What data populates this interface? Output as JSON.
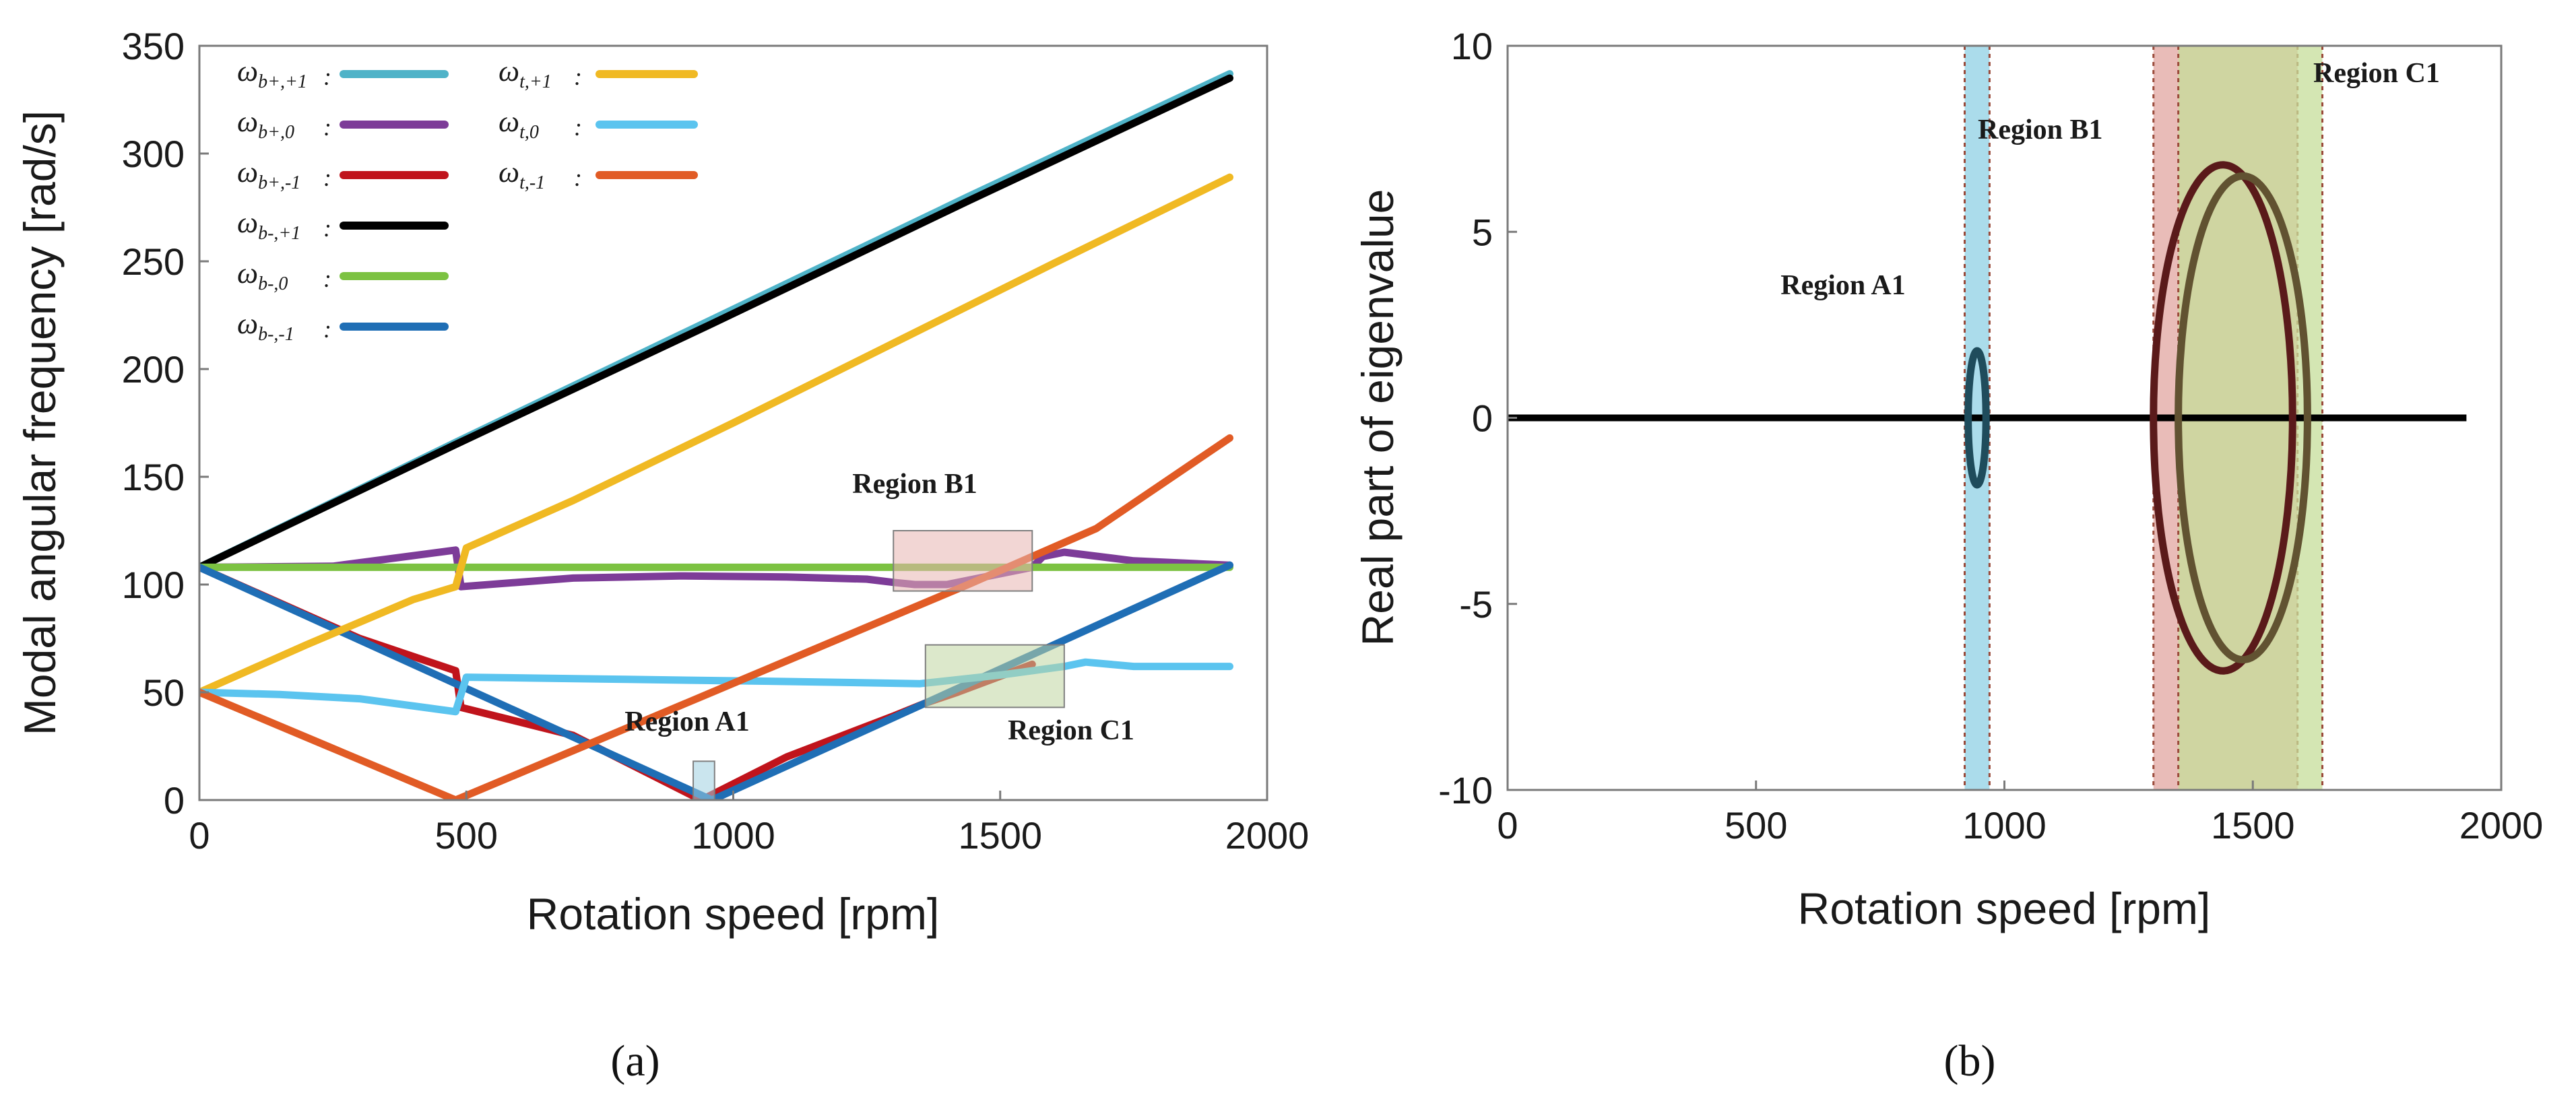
{
  "chart_data": [
    {
      "type": "line",
      "panel_label": "(a)",
      "xlabel": "Rotation speed [rpm]",
      "ylabel": "Modal angular frequency [rad/s]",
      "xlim": [
        0,
        2000
      ],
      "ylim": [
        0,
        350
      ],
      "xticks": [
        0,
        500,
        1000,
        1500,
        2000
      ],
      "yticks": [
        0,
        50,
        100,
        150,
        200,
        250,
        300,
        350
      ],
      "grid": false,
      "legend_position": "top-left",
      "series": [
        {
          "name": "ω_{b+,+1}",
          "color": "#4fb3c8",
          "x": [
            0,
            480,
            960,
            1440,
            1930
          ],
          "y": [
            108,
            166,
            223,
            280,
            337
          ]
        },
        {
          "name": "ω_{b+,0}",
          "color": "#7d3c98",
          "x": [
            0,
            250,
            480,
            490,
            700,
            900,
            1100,
            1250,
            1300,
            1340,
            1400,
            1560,
            1580,
            1620,
            1750,
            1930
          ],
          "y": [
            108,
            108.5,
            116,
            99,
            103,
            104,
            103.5,
            102.5,
            101,
            100,
            100,
            108,
            113,
            115,
            111,
            109
          ]
        },
        {
          "name": "ω_{b+,-1}",
          "color": "#c0141c",
          "x": [
            0,
            300,
            480,
            490,
            700,
            940,
            1100,
            1300,
            1360,
            1420,
            1560
          ],
          "y": [
            108,
            75,
            60,
            43,
            30,
            0,
            20,
            39,
            45,
            50,
            63
          ]
        },
        {
          "name": "ω_{b-,+1}",
          "color": "#000000",
          "x": [
            0,
            480,
            960,
            1440,
            1930
          ],
          "y": [
            108,
            165,
            221,
            278,
            335
          ]
        },
        {
          "name": "ω_{b-,0}",
          "color": "#7cc242",
          "x": [
            0,
            960,
            1930
          ],
          "y": [
            108,
            108,
            108
          ]
        },
        {
          "name": "ω_{b-,-1}",
          "color": "#1f6eb5",
          "x": [
            0,
            480,
            960,
            1440,
            1930
          ],
          "y": [
            108,
            54,
            0,
            54,
            109
          ]
        },
        {
          "name": "ω_{t,+1}",
          "color": "#f0b923",
          "x": [
            0,
            200,
            400,
            480,
            500,
            700,
            1000,
            1300,
            1600,
            1930
          ],
          "y": [
            50,
            72,
            93,
            99,
            117,
            139,
            175,
            212,
            249,
            289
          ]
        },
        {
          "name": "ω_{t,0}",
          "color": "#5bc4ef",
          "x": [
            0,
            150,
            300,
            480,
            500,
            800,
            1100,
            1350,
            1500,
            1620,
            1660,
            1750,
            1930
          ],
          "y": [
            50,
            49,
            47,
            41,
            57,
            56,
            55,
            54,
            58,
            62,
            64,
            62,
            62
          ]
        },
        {
          "name": "ω_{t,-1}",
          "color": "#e15b25",
          "x": [
            0,
            240,
            480,
            720,
            960,
            1200,
            1440,
            1680,
            1930
          ],
          "y": [
            50,
            25,
            0,
            25,
            50,
            75,
            100,
            126,
            168
          ]
        }
      ],
      "annotations": [
        {
          "label": "Region A1",
          "x_range": [
            925,
            965
          ],
          "y_range": [
            0,
            18
          ],
          "color": "#9fd0e0"
        },
        {
          "label": "Region B1",
          "x_range": [
            1300,
            1560
          ],
          "y_range": [
            97,
            125
          ],
          "color": "#e8b4b0"
        },
        {
          "label": "Region C1",
          "x_range": [
            1360,
            1620
          ],
          "y_range": [
            43,
            72
          ],
          "color": "#bfd6a0"
        }
      ]
    },
    {
      "type": "line",
      "panel_label": "(b)",
      "xlabel": "Rotation speed [rpm]",
      "ylabel": "Real part of eigenvalue",
      "xlim": [
        0,
        2000
      ],
      "ylim": [
        -10,
        10
      ],
      "xticks": [
        0,
        500,
        1000,
        1500,
        2000
      ],
      "yticks": [
        -10,
        -5,
        0,
        5,
        10
      ],
      "grid": false,
      "series": [
        {
          "name": "zero real part",
          "color": "#000000",
          "x": [
            0,
            1930
          ],
          "y": [
            0,
            0
          ]
        },
        {
          "name": "instability loop A1",
          "color": "#1f4c5c",
          "center_x": 945,
          "half_width_x": 18,
          "amplitude": 1.8
        },
        {
          "name": "instability loop B1",
          "color": "#5a1a1a",
          "center_x": 1440,
          "half_width_x": 140,
          "amplitude": 6.8
        },
        {
          "name": "instability loop C1",
          "color": "#615231",
          "center_x": 1480,
          "half_width_x": 130,
          "amplitude": 6.5
        }
      ],
      "annotations": [
        {
          "label": "Region A1",
          "x_range": [
            920,
            970
          ],
          "color": "#8fd0e4"
        },
        {
          "label": "Region B1",
          "x_range": [
            1300,
            1590
          ],
          "color": "#e2a6a0"
        },
        {
          "label": "Region C1",
          "x_range": [
            1350,
            1640
          ],
          "color": "#c6dd9a"
        }
      ]
    }
  ]
}
